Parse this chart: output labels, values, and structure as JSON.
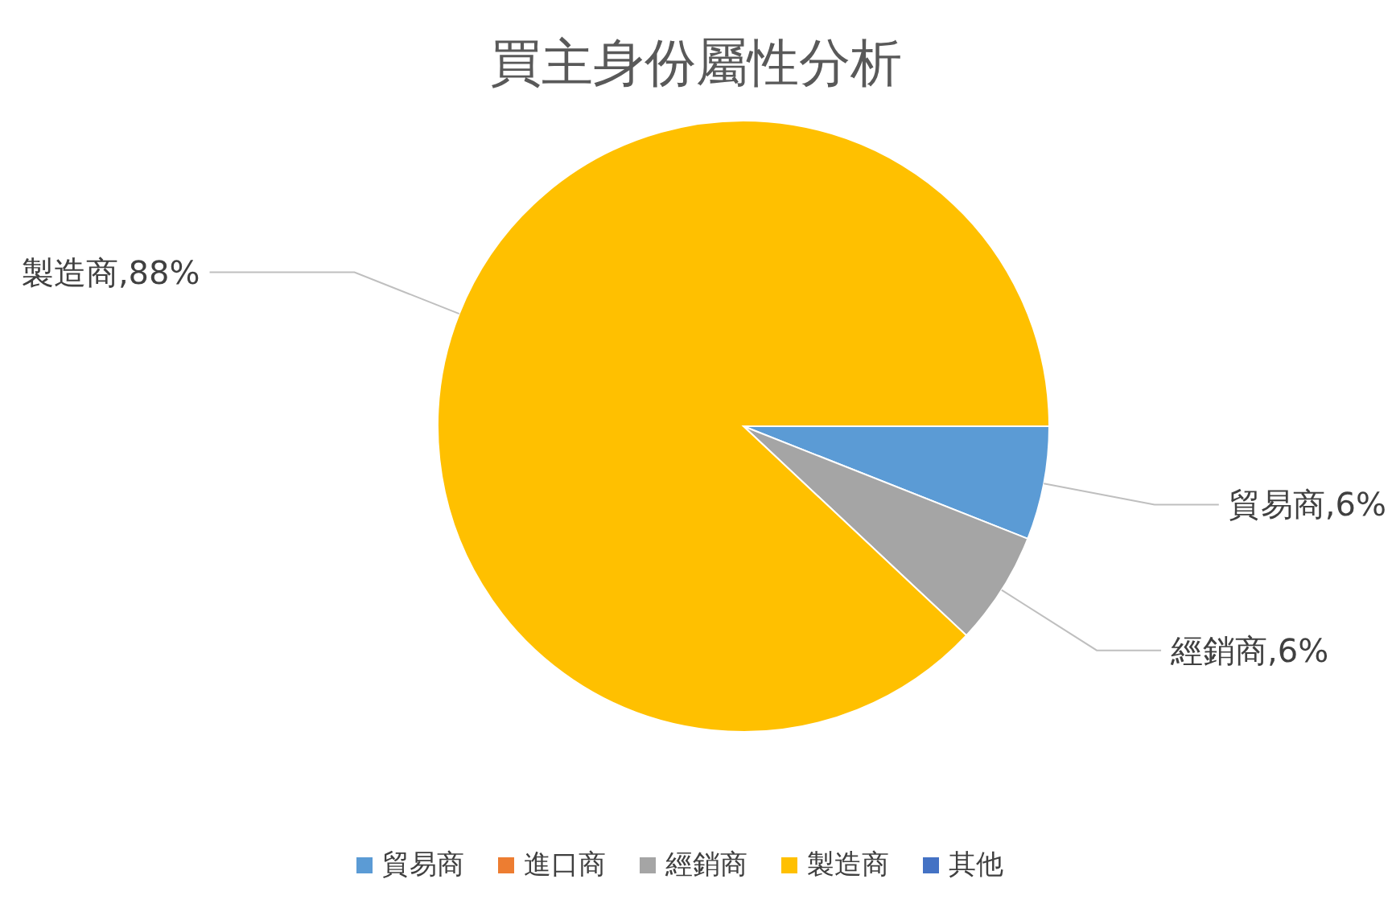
{
  "chart_data": {
    "type": "pie",
    "title": "買主身份屬性分析",
    "categories": [
      "貿易商",
      "進口商",
      "經銷商",
      "製造商",
      "其他"
    ],
    "values": [
      6,
      0,
      6,
      88,
      0
    ],
    "colors": [
      "#5b9bd5",
      "#ed7d31",
      "#a5a5a5",
      "#ffc000",
      "#4472c4"
    ],
    "value_labels": [
      "貿易商,6%",
      null,
      "經銷商,6%",
      "製造商,88%",
      null
    ],
    "legend": "bottom"
  }
}
